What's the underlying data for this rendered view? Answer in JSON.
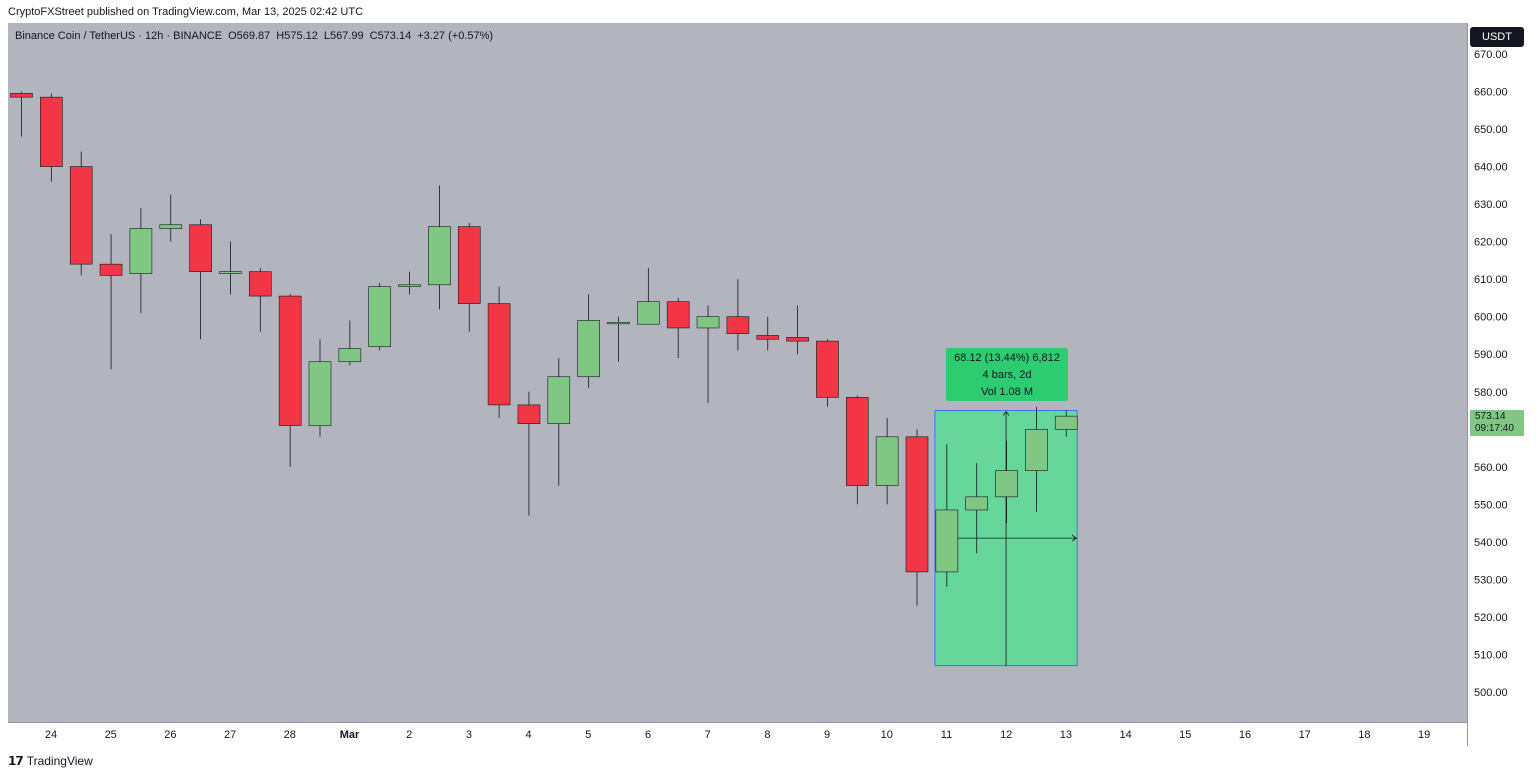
{
  "header": {
    "published": "CryptoFXStreet published on TradingView.com, Mar 13, 2025 02:42 UTC"
  },
  "legend": {
    "symbol": "Binance Coin / TetherUS · 12h · BINANCE",
    "open": "O569.87",
    "high": "H575.12",
    "low": "L567.99",
    "close": "C573.14",
    "change": "+3.27 (+0.57%)"
  },
  "price_axis": {
    "currency": "USDT",
    "last_price": "573.14",
    "countdown": "09:17:40",
    "labels": [
      "670.00",
      "660.00",
      "650.00",
      "640.00",
      "630.00",
      "620.00",
      "610.00",
      "600.00",
      "590.00",
      "580.00",
      "570.00",
      "560.00",
      "550.00",
      "540.00",
      "530.00",
      "520.00",
      "510.00",
      "500.00"
    ]
  },
  "measure": {
    "line1": "68.12 (13.44%) 6,812",
    "line2": "4 bars, 2d",
    "line3": "Vol 1.08 M"
  },
  "footer": {
    "brand": "TradingView"
  },
  "colors": {
    "background": "#b2b5be",
    "up": "#81c784",
    "down": "#f23645",
    "measure_fill": "#66d69a",
    "measure_box": "#2ecc71",
    "measure_border": "#2962ff"
  },
  "chart_data": {
    "type": "candlestick",
    "title": "Binance Coin / TetherUS · 12h · BINANCE",
    "ylim": [
      492,
      675
    ],
    "x_tick_labels": [
      "24",
      "25",
      "26",
      "27",
      "28",
      "Mar",
      "2",
      "3",
      "4",
      "5",
      "6",
      "7",
      "8",
      "9",
      "10",
      "11",
      "12",
      "13",
      "14",
      "15",
      "16",
      "17",
      "18",
      "19"
    ],
    "candles": [
      {
        "o": 659.5,
        "h": 660.0,
        "l": 648.0,
        "c": 658.5
      },
      {
        "o": 658.5,
        "h": 659.5,
        "l": 636.0,
        "c": 640.0
      },
      {
        "o": 640.0,
        "h": 644.0,
        "l": 611.0,
        "c": 614.0
      },
      {
        "o": 614.0,
        "h": 622.0,
        "l": 586.0,
        "c": 611.0
      },
      {
        "o": 611.5,
        "h": 629.0,
        "l": 601.0,
        "c": 623.5
      },
      {
        "o": 623.5,
        "h": 632.5,
        "l": 620.0,
        "c": 624.5
      },
      {
        "o": 624.5,
        "h": 626.0,
        "l": 594.0,
        "c": 612.0
      },
      {
        "o": 611.5,
        "h": 620.0,
        "l": 606.0,
        "c": 612.0
      },
      {
        "o": 612.0,
        "h": 613.0,
        "l": 596.0,
        "c": 605.5
      },
      {
        "o": 605.5,
        "h": 606.0,
        "l": 560.0,
        "c": 571.0
      },
      {
        "o": 571.0,
        "h": 594.0,
        "l": 568.0,
        "c": 588.0
      },
      {
        "o": 588.0,
        "h": 599.0,
        "l": 587.0,
        "c": 591.5
      },
      {
        "o": 592.0,
        "h": 609.0,
        "l": 591.0,
        "c": 608.0
      },
      {
        "o": 608.0,
        "h": 612.0,
        "l": 606.0,
        "c": 608.5
      },
      {
        "o": 608.5,
        "h": 635.0,
        "l": 602.0,
        "c": 624.0
      },
      {
        "o": 624.0,
        "h": 625.0,
        "l": 596.0,
        "c": 603.5
      },
      {
        "o": 603.5,
        "h": 608.0,
        "l": 573.0,
        "c": 576.5
      },
      {
        "o": 576.5,
        "h": 580.0,
        "l": 547.0,
        "c": 571.5
      },
      {
        "o": 571.5,
        "h": 589.0,
        "l": 555.0,
        "c": 584.0
      },
      {
        "o": 584.0,
        "h": 606.0,
        "l": 581.0,
        "c": 599.0
      },
      {
        "o": 598.5,
        "h": 600.0,
        "l": 588.0,
        "c": 598.5
      },
      {
        "o": 598.0,
        "h": 613.0,
        "l": 598.0,
        "c": 604.0
      },
      {
        "o": 604.0,
        "h": 605.0,
        "l": 589.0,
        "c": 597.0
      },
      {
        "o": 597.0,
        "h": 603.0,
        "l": 577.0,
        "c": 600.0
      },
      {
        "o": 600.0,
        "h": 610.0,
        "l": 591.0,
        "c": 595.5
      },
      {
        "o": 595.0,
        "h": 600.0,
        "l": 591.0,
        "c": 594.0
      },
      {
        "o": 594.5,
        "h": 603.0,
        "l": 590.0,
        "c": 593.5
      },
      {
        "o": 593.5,
        "h": 594.0,
        "l": 576.0,
        "c": 578.5
      },
      {
        "o": 578.5,
        "h": 579.0,
        "l": 550.0,
        "c": 555.0
      },
      {
        "o": 555.0,
        "h": 573.0,
        "l": 550.0,
        "c": 568.0
      },
      {
        "o": 568.0,
        "h": 570.0,
        "l": 523.0,
        "c": 532.0
      },
      {
        "o": 532.0,
        "h": 566.0,
        "l": 528.0,
        "c": 548.5
      },
      {
        "o": 548.5,
        "h": 561.0,
        "l": 537.0,
        "c": 552.0
      },
      {
        "o": 552.0,
        "h": 567.0,
        "l": 545.0,
        "c": 559.0
      },
      {
        "o": 559.0,
        "h": 576.0,
        "l": 548.0,
        "c": 570.0
      },
      {
        "o": 570.0,
        "h": 575.0,
        "l": 568.0,
        "c": 573.5
      }
    ],
    "measure_range": {
      "from_bar": 31,
      "to_bar": 35,
      "y_low": 507.0,
      "y_high": 575.0,
      "change": "68.12 (13.44%) 6,812",
      "bars": "4 bars, 2d",
      "volume": "Vol 1.08 M"
    }
  }
}
